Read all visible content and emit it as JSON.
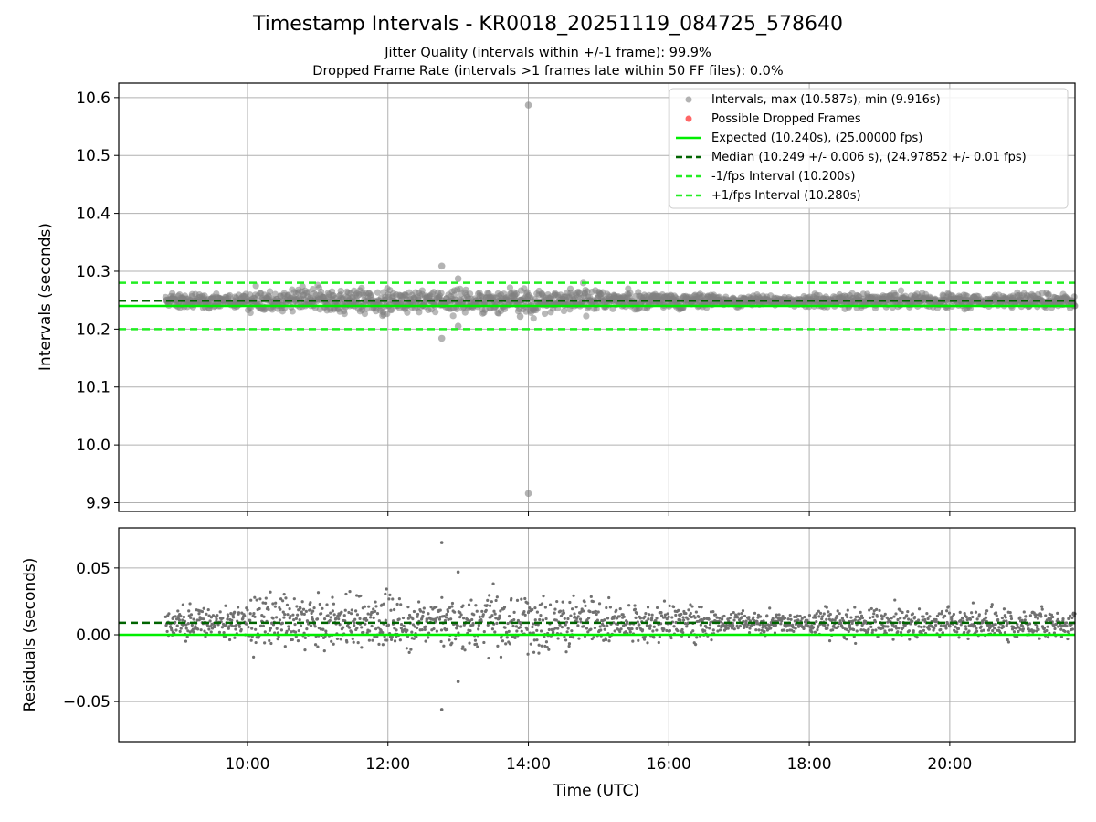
{
  "figure": {
    "title": "Timestamp Intervals - KR0018_20251119_084725_578640",
    "subtitle_1": "Jitter Quality (intervals within +/-1 frame): 99.9%",
    "subtitle_2": "Dropped Frame Rate (intervals >1 frames late within 50 FF files): 0.0%"
  },
  "colors": {
    "scatter": "#808080",
    "dropped": "#ff4040",
    "expected": "#00ee00",
    "median": "#006400",
    "bounds": "#22ee22",
    "grid": "#b0b0b0"
  },
  "chart_data": [
    {
      "type": "scatter",
      "panel": "intervals",
      "ylabel": "Intervals (seconds)",
      "xlabel": "",
      "x_unit": "time of day (UTC)",
      "xlim": [
        "08:10",
        "21:47"
      ],
      "ylim": [
        9.885,
        10.625
      ],
      "x_ticks": [
        "10:00",
        "12:00",
        "14:00",
        "16:00",
        "18:00",
        "20:00"
      ],
      "y_ticks": [
        "9.9",
        "10.0",
        "10.1",
        "10.2",
        "10.3",
        "10.4",
        "10.5",
        "10.6"
      ],
      "y_tick_values": [
        9.9,
        10.0,
        10.1,
        10.2,
        10.3,
        10.4,
        10.5,
        10.6
      ],
      "grid": true,
      "legend_position": "top-right",
      "series": [
        {
          "name": "Intervals, max (10.587s), min (9.916s)",
          "kind": "scatter",
          "x_range": [
            "08:50",
            "21:47"
          ],
          "center": 10.249,
          "spread": 0.006,
          "outliers": [
            {
              "x": "12:46",
              "y": 10.309
            },
            {
              "x": "12:46",
              "y": 10.184
            },
            {
              "x": "13:00",
              "y": 10.287
            },
            {
              "x": "13:00",
              "y": 10.205
            },
            {
              "x": "13:53",
              "y": 10.222
            },
            {
              "x": "14:00",
              "y": 10.587
            },
            {
              "x": "14:00",
              "y": 9.916
            }
          ]
        },
        {
          "name": "Possible Dropped Frames",
          "kind": "scatter",
          "values": []
        },
        {
          "name": "Expected (10.240s), (25.00000 fps)",
          "kind": "hline",
          "y": 10.24
        },
        {
          "name": "Median (10.249 +/- 0.006 s), (24.97852 +/- 0.01 fps)",
          "kind": "hline",
          "y": 10.249
        },
        {
          "name": "-1/fps Interval (10.200s)",
          "kind": "hline",
          "y": 10.2
        },
        {
          "name": "+1/fps Interval (10.280s)",
          "kind": "hline",
          "y": 10.28
        }
      ]
    },
    {
      "type": "scatter",
      "panel": "residuals",
      "ylabel": "Residuals (seconds)",
      "xlabel": "Time (UTC)",
      "xlim": [
        "08:10",
        "21:47"
      ],
      "ylim": [
        -0.08,
        0.08
      ],
      "x_ticks": [
        "10:00",
        "12:00",
        "14:00",
        "16:00",
        "18:00",
        "20:00"
      ],
      "y_ticks": [
        "−0.05",
        "0.00",
        "0.05"
      ],
      "y_tick_values": [
        -0.05,
        0.0,
        0.05
      ],
      "grid": true,
      "series": [
        {
          "kind": "scatter",
          "x_range": [
            "08:50",
            "21:47"
          ],
          "center": 0.009,
          "spread": 0.006,
          "outliers": [
            {
              "x": "12:46",
              "y": 0.069
            },
            {
              "x": "12:46",
              "y": -0.056
            },
            {
              "x": "13:00",
              "y": 0.047
            },
            {
              "x": "13:00",
              "y": -0.035
            }
          ]
        },
        {
          "kind": "hline",
          "role": "expected",
          "y": 0.0
        },
        {
          "kind": "hline",
          "role": "median",
          "y": 0.009
        }
      ]
    }
  ]
}
